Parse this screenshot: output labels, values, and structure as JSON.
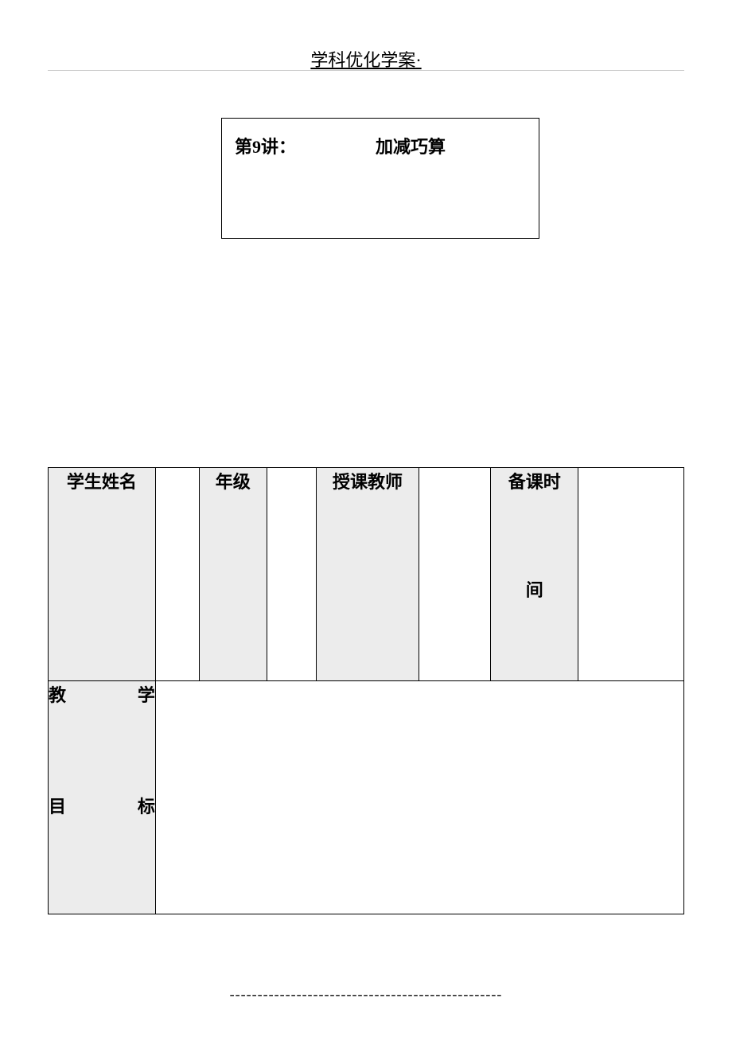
{
  "header": {
    "title": "学科优化学案·"
  },
  "titleBox": {
    "lesson": "第9讲：",
    "subject": "加减巧算"
  },
  "table": {
    "row1": {
      "studentName": {
        "label": "学生姓名",
        "value": ""
      },
      "grade": {
        "label": "年级",
        "value": ""
      },
      "teacher": {
        "label": "授课教师",
        "value": ""
      },
      "prepTime": {
        "labelLine1": "备课时",
        "labelLine2": "间",
        "value": ""
      }
    },
    "row2": {
      "teachingObjective": {
        "labelChar1": "教",
        "labelChar2": "学",
        "labelChar3": "目",
        "labelChar4": "标",
        "value": ""
      }
    }
  },
  "footer": {
    "dashes": "-------------------------------------------------"
  },
  "styling": {
    "pageWidth": 920,
    "pageHeight": 1303,
    "background": "#ffffff",
    "textColor": "#000000",
    "labelBg": "#ececec",
    "borderColor": "#000000",
    "ruleColor": "#cccccc",
    "fontSizeHeader": 22,
    "fontSizeBody": 22,
    "fontFamily": "SimSun"
  }
}
